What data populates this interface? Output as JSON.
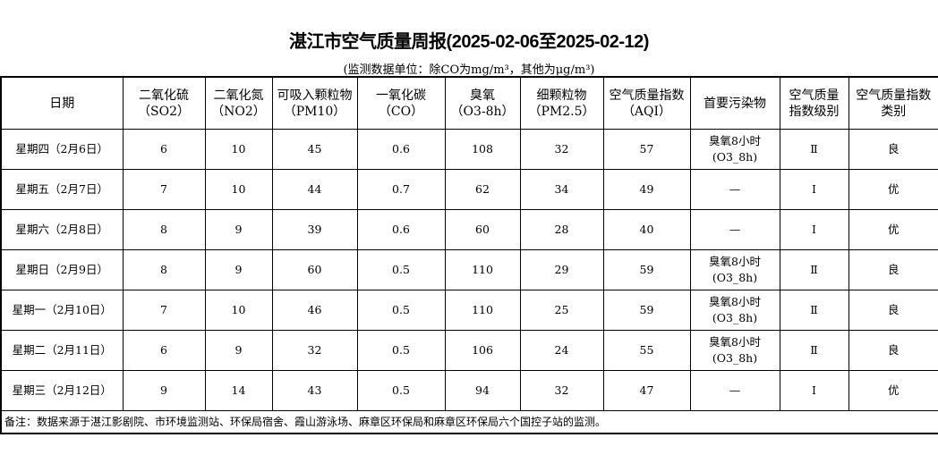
{
  "title": "湛江市空气质量周报(2025-02-06至2025-02-12)",
  "unit_note": "(监测数据单位：除CO为mg/m³，其他为μg/m³)",
  "headers": [
    {
      "l1": "日期",
      "l2": ""
    },
    {
      "l1": "二氧化硫",
      "l2": "（SO2）"
    },
    {
      "l1": "二氧化氮",
      "l2": "（NO2）"
    },
    {
      "l1": "可吸入颗粒物",
      "l2": "（PM10）"
    },
    {
      "l1": "一氧化碳",
      "l2": "（CO）"
    },
    {
      "l1": "臭氧",
      "l2": "（O3-8h）"
    },
    {
      "l1": "细颗粒物",
      "l2": "（PM2.5）"
    },
    {
      "l1": "空气质量指数",
      "l2": "（AQI）"
    },
    {
      "l1": "首要污染物",
      "l2": ""
    },
    {
      "l1": "空气质量",
      "l2": "指数级别"
    },
    {
      "l1": "空气质量指数",
      "l2": "类别"
    }
  ],
  "rows": [
    [
      "星期四（2月6日）",
      "6",
      "10",
      "45",
      "0.6",
      "108",
      "32",
      "57",
      "臭氧8小时|(O3_8h)",
      "Ⅱ",
      "良"
    ],
    [
      "星期五（2月7日）",
      "7",
      "10",
      "44",
      "0.7",
      "62",
      "34",
      "49",
      "—",
      "Ⅰ",
      "优"
    ],
    [
      "星期六（2月8日）",
      "8",
      "9",
      "39",
      "0.6",
      "60",
      "28",
      "40",
      "—",
      "Ⅰ",
      "优"
    ],
    [
      "星期日（2月9日）",
      "8",
      "9",
      "60",
      "0.5",
      "110",
      "29",
      "59",
      "臭氧8小时|(O3_8h)",
      "Ⅱ",
      "良"
    ],
    [
      "星期一（2月10日）",
      "7",
      "10",
      "46",
      "0.5",
      "110",
      "25",
      "59",
      "臭氧8小时|(O3_8h)",
      "Ⅱ",
      "良"
    ],
    [
      "星期二（2月11日）",
      "6",
      "9",
      "32",
      "0.5",
      "106",
      "24",
      "55",
      "臭氧8小时|(O3_8h)",
      "Ⅱ",
      "良"
    ],
    [
      "星期三（2月12日）",
      "9",
      "14",
      "43",
      "0.5",
      "94",
      "32",
      "47",
      "—",
      "Ⅰ",
      "优"
    ]
  ],
  "footnote": "备注：数据来源于湛江影剧院、市环境监测站、环保局宿舍、霞山游泳场、麻章区环保局和麻章区环保局六个国控子站的监测。"
}
